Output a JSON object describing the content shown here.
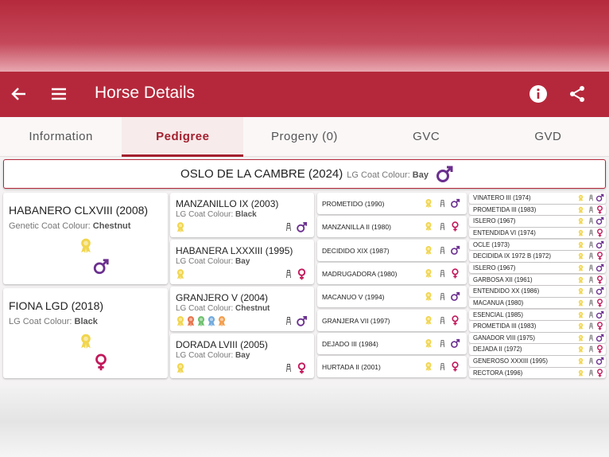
{
  "header": {
    "title": "Horse Details"
  },
  "tabs": [
    "Information",
    "Pedigree",
    "Progeny (0)",
    "GVC",
    "GVD"
  ],
  "horse": {
    "name": "OSLO DE LA CAMBRE (2024)",
    "coat_label": "LG Coat Colour:",
    "coat": "Bay"
  },
  "parents": [
    {
      "name": "HABANERO CLXVIII (2008)",
      "coat_label": "Genetic Coat Colour:",
      "coat": "Chestnut"
    },
    {
      "name": "FIONA LGD (2018)",
      "coat_label": "LG Coat Colour:",
      "coat": "Black"
    }
  ],
  "grandparents": [
    {
      "name": "MANZANILLO IX (2003)",
      "coat_label": "LG Coat Colour:",
      "coat": "Black"
    },
    {
      "name": "HABANERA LXXXIII (1995)",
      "coat_label": "LG Coat Colour:",
      "coat": "Bay"
    },
    {
      "name": "GRANJERO V (2004)",
      "coat_label": "LG Coat Colour:",
      "coat": "Chestnut"
    },
    {
      "name": "DORADA LVIII (2005)",
      "coat_label": "LG Coat Colour:",
      "coat": "Bay"
    }
  ],
  "great_grandparents": [
    "PROMETIDO (1990)",
    "MANZANILLA II (1980)",
    "DECIDIDO XIX (1987)",
    "MADRUGADORA (1980)",
    "MACANUO V (1994)",
    "GRANJERA VII (1997)",
    "DEJADO III (1984)",
    "HURTADA II (2001)"
  ],
  "great_great_grandparents": [
    "VINATERO III (1974)",
    "PROMETIDA III (1983)",
    "ISLERO (1967)",
    "ENTENDIDA VI (1974)",
    "OCLE (1973)",
    "DECIDIDA IX 1972 B (1972)",
    "ISLERO (1967)",
    "GARBOSA XII (1961)",
    "ENTENDIDO XX (1986)",
    "MACANUA (1980)",
    "ESENCIAL (1985)",
    "PROMETIDA III (1983)",
    "GANADOR VIII (1975)",
    "DEJADA II (1972)",
    "GENEROSO XXXIII (1995)",
    "RECTORA (1996)"
  ]
}
